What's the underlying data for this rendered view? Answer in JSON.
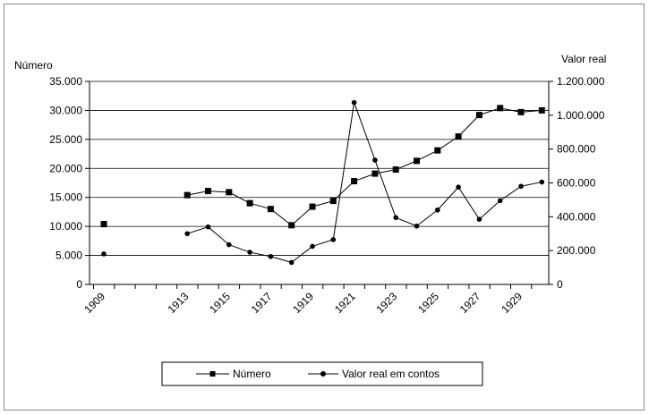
{
  "chart_data": {
    "type": "line",
    "title": "",
    "y_left_label": "Número",
    "y_right_label": "Valor real",
    "x_tick_labels": [
      "1909",
      "1913",
      "1915",
      "1917",
      "1919",
      "1921",
      "1923",
      "1925",
      "1927",
      "1929"
    ],
    "x_range": [
      1909,
      1930
    ],
    "y_left_ticks": [
      "0",
      "5.000",
      "10.000",
      "15.000",
      "20.000",
      "25.000",
      "30.000",
      "35.000"
    ],
    "y_left_range": [
      0,
      35000
    ],
    "y_right_ticks": [
      "0",
      "200.000",
      "400.000",
      "600.000",
      "800.000",
      "1.000.000",
      "1.200.000"
    ],
    "y_right_range": [
      0,
      1200000
    ],
    "grid": "horizontal",
    "legend_position": "bottom",
    "series": [
      {
        "name": "Número",
        "axis": "left",
        "marker": "square",
        "color": "#000000",
        "points": [
          [
            1909,
            10400
          ],
          [
            1913,
            15400
          ],
          [
            1914,
            16100
          ],
          [
            1915,
            15900
          ],
          [
            1916,
            14000
          ],
          [
            1917,
            13000
          ],
          [
            1918,
            10200
          ],
          [
            1919,
            13400
          ],
          [
            1920,
            14400
          ],
          [
            1921,
            17800
          ],
          [
            1922,
            19100
          ],
          [
            1923,
            19800
          ],
          [
            1924,
            21300
          ],
          [
            1925,
            23100
          ],
          [
            1926,
            25500
          ],
          [
            1927,
            29200
          ],
          [
            1928,
            30400
          ],
          [
            1929,
            29700
          ],
          [
            1930,
            30000
          ]
        ]
      },
      {
        "name": "Valor real em contos",
        "axis": "right",
        "marker": "circle",
        "color": "#000000",
        "points": [
          [
            1909,
            180000
          ],
          [
            1913,
            300000
          ],
          [
            1914,
            340000
          ],
          [
            1915,
            235000
          ],
          [
            1916,
            190000
          ],
          [
            1917,
            165000
          ],
          [
            1918,
            130000
          ],
          [
            1919,
            225000
          ],
          [
            1920,
            265000
          ],
          [
            1921,
            1075000
          ],
          [
            1922,
            735000
          ],
          [
            1923,
            395000
          ],
          [
            1924,
            345000
          ],
          [
            1925,
            440000
          ],
          [
            1926,
            575000
          ],
          [
            1927,
            385000
          ],
          [
            1928,
            495000
          ],
          [
            1929,
            580000
          ],
          [
            1930,
            605000
          ]
        ]
      }
    ]
  }
}
